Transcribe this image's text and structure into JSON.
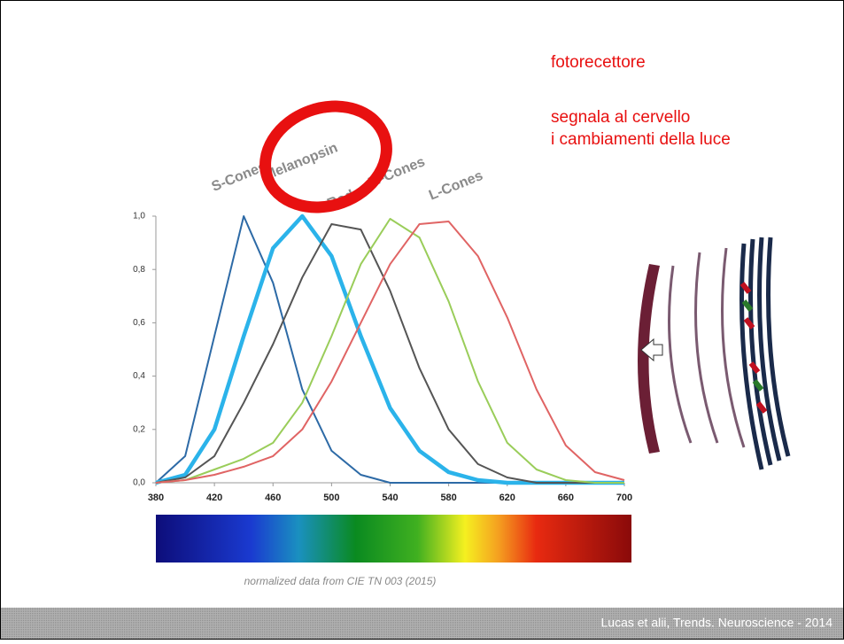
{
  "slide": {
    "lines": [
      "fotorecettore",
      "segnala al cervello",
      "i cambiamenti della luce"
    ],
    "footer": "Lucas et alii, Trends. Neuroscience - 2014"
  },
  "chart_data": {
    "type": "line",
    "note": "normalized data from CIE TN 003 (2015)",
    "x": [
      380,
      400,
      420,
      440,
      460,
      480,
      500,
      520,
      540,
      560,
      580,
      600,
      620,
      640,
      660,
      680,
      700
    ],
    "xlim": [
      380,
      700
    ],
    "xticks": [
      380,
      420,
      460,
      500,
      540,
      580,
      620,
      660,
      700
    ],
    "ylim": [
      0,
      1
    ],
    "yticks": [
      {
        "value": 0,
        "label": "0,0"
      },
      {
        "value": 0.2,
        "label": "0,2"
      },
      {
        "value": 0.4,
        "label": "0,4"
      },
      {
        "value": 0.6,
        "label": "0,6"
      },
      {
        "value": 0.8,
        "label": "0,8"
      },
      {
        "value": 1,
        "label": "1,0"
      }
    ],
    "series": [
      {
        "name": "S-Cones",
        "color": "#2d6aa6",
        "values": [
          0,
          0.1,
          0.55,
          1.0,
          0.75,
          0.35,
          0.12,
          0.03,
          0,
          0,
          0,
          0,
          0,
          0,
          0,
          0,
          0
        ]
      },
      {
        "name": "Melanopsin",
        "color": "#2bb3ea",
        "values": [
          0,
          0.03,
          0.2,
          0.55,
          0.88,
          1.0,
          0.85,
          0.55,
          0.28,
          0.12,
          0.04,
          0.01,
          0,
          0,
          0,
          0,
          0
        ]
      },
      {
        "name": "Rods",
        "color": "#555555",
        "values": [
          0,
          0.02,
          0.1,
          0.3,
          0.52,
          0.77,
          0.97,
          0.95,
          0.72,
          0.43,
          0.2,
          0.07,
          0.02,
          0,
          0,
          0,
          0
        ]
      },
      {
        "name": "M-Cones",
        "color": "#9acd5a",
        "values": [
          0,
          0.01,
          0.05,
          0.09,
          0.15,
          0.3,
          0.55,
          0.82,
          0.99,
          0.92,
          0.68,
          0.38,
          0.15,
          0.05,
          0.01,
          0,
          0
        ]
      },
      {
        "name": "L-Cones",
        "color": "#e06464",
        "values": [
          0,
          0.01,
          0.03,
          0.06,
          0.1,
          0.2,
          0.38,
          0.6,
          0.82,
          0.97,
          0.98,
          0.85,
          0.62,
          0.35,
          0.14,
          0.04,
          0.01
        ]
      }
    ]
  }
}
